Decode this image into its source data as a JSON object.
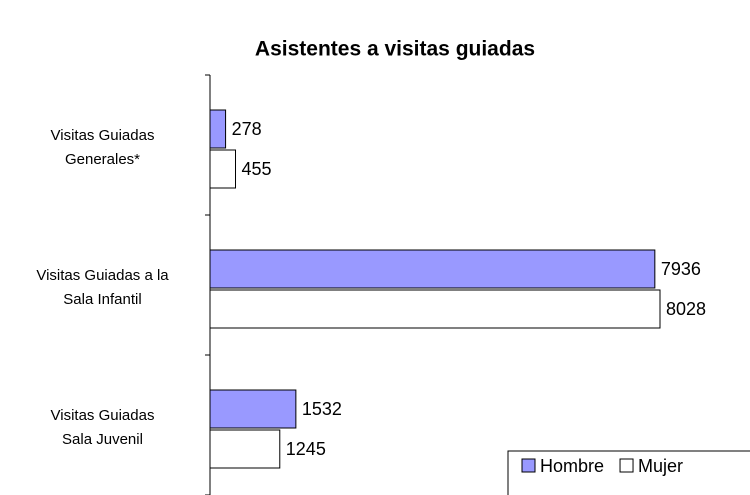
{
  "chart_data": {
    "type": "bar",
    "orientation": "horizontal",
    "title": "Asistentes a visitas guiadas",
    "categories": [
      "Visitas Guiadas\nGenerales*",
      "Visitas Guiadas a la\nSala Infantil",
      "Visitas Guiadas\nSala Juvenil"
    ],
    "series": [
      {
        "name": "Hombre",
        "color": "#9999ff",
        "values": [
          278,
          7936,
          1532
        ]
      },
      {
        "name": "Mujer",
        "color": "#ffffff",
        "values": [
          455,
          8028,
          1245
        ]
      }
    ],
    "legend": "bottom-right"
  }
}
